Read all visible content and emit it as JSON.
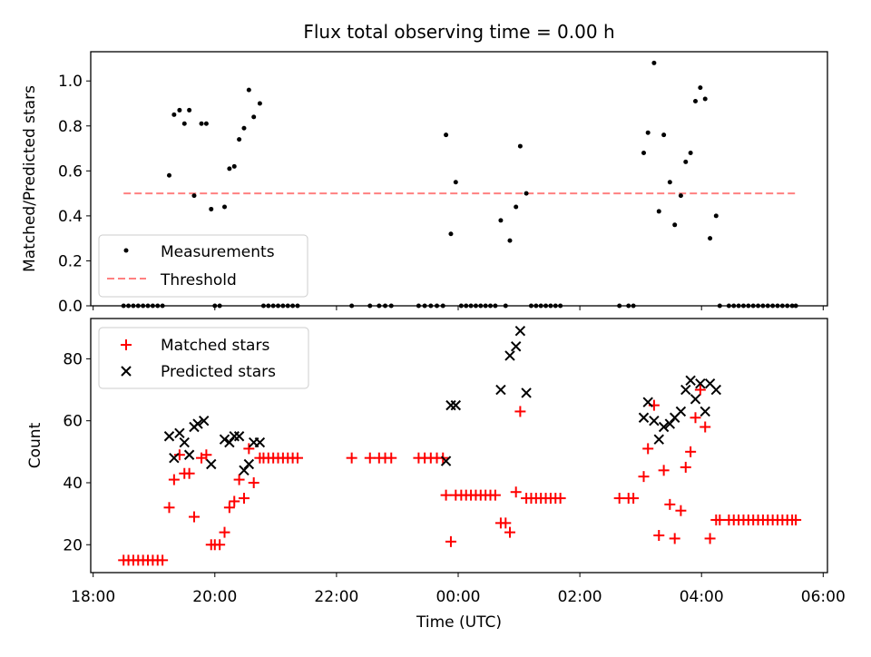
{
  "title": "Flux total observing time = 0.00 h",
  "chart_data": [
    {
      "type": "scatter",
      "panel": "top",
      "ylabel": "Matched/Predicted stars",
      "ylim": [
        0,
        1.13
      ],
      "yticks": [
        0.0,
        0.2,
        0.4,
        0.6,
        0.8,
        1.0
      ],
      "ytick_labels": [
        "0.0",
        "0.2",
        "0.4",
        "0.6",
        "0.8",
        "1.0"
      ],
      "xlim": [
        -0.04,
        12.07
      ],
      "xtick_hours": [
        0,
        2,
        4,
        6,
        8,
        10,
        12
      ],
      "legend_position": "bottom-left",
      "legend": [
        "Measurements",
        "Threshold"
      ],
      "threshold": {
        "name": "Threshold",
        "y": 0.5,
        "x": [
          0.5,
          11.55
        ],
        "color": "#ff8080"
      },
      "series": [
        {
          "name": "Measurements",
          "color": "#000000",
          "points": [
            [
              0.5,
              0
            ],
            [
              0.58,
              0
            ],
            [
              0.66,
              0
            ],
            [
              0.74,
              0
            ],
            [
              0.82,
              0
            ],
            [
              0.9,
              0
            ],
            [
              0.98,
              0
            ],
            [
              1.06,
              0
            ],
            [
              1.14,
              0
            ],
            [
              1.25,
              0.58
            ],
            [
              1.33,
              0.85
            ],
            [
              1.42,
              0.87
            ],
            [
              1.5,
              0.81
            ],
            [
              1.58,
              0.87
            ],
            [
              1.66,
              0.49
            ],
            [
              1.78,
              0.81
            ],
            [
              1.86,
              0.81
            ],
            [
              1.94,
              0.43
            ],
            [
              2.0,
              0
            ],
            [
              2.08,
              0
            ],
            [
              2.16,
              0.44
            ],
            [
              2.24,
              0.61
            ],
            [
              2.32,
              0.62
            ],
            [
              2.4,
              0.74
            ],
            [
              2.48,
              0.79
            ],
            [
              2.56,
              0.96
            ],
            [
              2.64,
              0.84
            ],
            [
              2.74,
              0.9
            ],
            [
              2.8,
              0
            ],
            [
              2.88,
              0
            ],
            [
              2.96,
              0
            ],
            [
              3.04,
              0
            ],
            [
              3.12,
              0
            ],
            [
              3.2,
              0
            ],
            [
              3.28,
              0
            ],
            [
              3.36,
              0
            ],
            [
              4.25,
              0
            ],
            [
              4.55,
              0
            ],
            [
              4.7,
              0
            ],
            [
              4.8,
              0
            ],
            [
              4.9,
              0
            ],
            [
              5.35,
              0
            ],
            [
              5.45,
              0
            ],
            [
              5.55,
              0
            ],
            [
              5.65,
              0
            ],
            [
              5.75,
              0
            ],
            [
              5.8,
              0.76
            ],
            [
              5.88,
              0.32
            ],
            [
              5.96,
              0.55
            ],
            [
              6.05,
              0
            ],
            [
              6.13,
              0
            ],
            [
              6.21,
              0
            ],
            [
              6.29,
              0
            ],
            [
              6.37,
              0
            ],
            [
              6.45,
              0
            ],
            [
              6.53,
              0
            ],
            [
              6.61,
              0
            ],
            [
              6.7,
              0.38
            ],
            [
              6.78,
              0
            ],
            [
              6.85,
              0.29
            ],
            [
              6.95,
              0.44
            ],
            [
              7.02,
              0.71
            ],
            [
              7.12,
              0.5
            ],
            [
              7.2,
              0
            ],
            [
              7.28,
              0
            ],
            [
              7.36,
              0
            ],
            [
              7.44,
              0
            ],
            [
              7.52,
              0
            ],
            [
              7.6,
              0
            ],
            [
              7.68,
              0
            ],
            [
              8.65,
              0
            ],
            [
              8.8,
              0
            ],
            [
              8.88,
              0
            ],
            [
              9.05,
              0.68
            ],
            [
              9.12,
              0.77
            ],
            [
              9.22,
              1.08
            ],
            [
              9.3,
              0.42
            ],
            [
              9.38,
              0.76
            ],
            [
              9.48,
              0.55
            ],
            [
              9.56,
              0.36
            ],
            [
              9.66,
              0.49
            ],
            [
              9.74,
              0.64
            ],
            [
              9.82,
              0.68
            ],
            [
              9.9,
              0.91
            ],
            [
              9.98,
              0.97
            ],
            [
              10.06,
              0.92
            ],
            [
              10.14,
              0.3
            ],
            [
              10.24,
              0.4
            ],
            [
              10.3,
              0
            ],
            [
              10.45,
              0
            ],
            [
              10.53,
              0
            ],
            [
              10.61,
              0
            ],
            [
              10.69,
              0
            ],
            [
              10.77,
              0
            ],
            [
              10.85,
              0
            ],
            [
              10.93,
              0
            ],
            [
              11.01,
              0
            ],
            [
              11.09,
              0
            ],
            [
              11.17,
              0
            ],
            [
              11.25,
              0
            ],
            [
              11.33,
              0
            ],
            [
              11.41,
              0
            ],
            [
              11.49,
              0
            ],
            [
              11.55,
              0
            ]
          ]
        }
      ]
    },
    {
      "type": "scatter",
      "panel": "bottom",
      "xlabel": "Time (UTC)",
      "ylabel": "Count",
      "ylim": [
        11,
        93
      ],
      "yticks": [
        20,
        40,
        60,
        80
      ],
      "ytick_labels": [
        "20",
        "40",
        "60",
        "80"
      ],
      "xlim": [
        -0.04,
        12.07
      ],
      "xtick_hours": [
        0,
        2,
        4,
        6,
        8,
        10,
        12
      ],
      "xtick_labels": [
        "18:00",
        "20:00",
        "22:00",
        "00:00",
        "02:00",
        "04:00",
        "06:00"
      ],
      "legend_position": "top-left",
      "legend": [
        "Matched stars",
        "Predicted stars"
      ],
      "series": [
        {
          "name": "Matched stars",
          "marker": "plus",
          "color": "#ff0000",
          "points": [
            [
              0.5,
              15
            ],
            [
              0.58,
              15
            ],
            [
              0.66,
              15
            ],
            [
              0.74,
              15
            ],
            [
              0.82,
              15
            ],
            [
              0.9,
              15
            ],
            [
              0.98,
              15
            ],
            [
              1.06,
              15
            ],
            [
              1.14,
              15
            ],
            [
              1.25,
              32
            ],
            [
              1.33,
              41
            ],
            [
              1.42,
              49
            ],
            [
              1.5,
              43
            ],
            [
              1.58,
              43
            ],
            [
              1.66,
              29
            ],
            [
              1.78,
              48
            ],
            [
              1.86,
              49
            ],
            [
              1.94,
              20
            ],
            [
              2.0,
              20
            ],
            [
              2.08,
              20
            ],
            [
              2.16,
              24
            ],
            [
              2.24,
              32
            ],
            [
              2.32,
              34
            ],
            [
              2.4,
              41
            ],
            [
              2.48,
              35
            ],
            [
              2.56,
              51
            ],
            [
              2.64,
              40
            ],
            [
              2.74,
              48
            ],
            [
              2.8,
              48
            ],
            [
              2.88,
              48
            ],
            [
              2.96,
              48
            ],
            [
              3.04,
              48
            ],
            [
              3.12,
              48
            ],
            [
              3.2,
              48
            ],
            [
              3.28,
              48
            ],
            [
              3.36,
              48
            ],
            [
              4.25,
              48
            ],
            [
              4.55,
              48
            ],
            [
              4.7,
              48
            ],
            [
              4.8,
              48
            ],
            [
              4.9,
              48
            ],
            [
              5.35,
              48
            ],
            [
              5.45,
              48
            ],
            [
              5.55,
              48
            ],
            [
              5.65,
              48
            ],
            [
              5.75,
              48
            ],
            [
              5.8,
              36
            ],
            [
              5.88,
              21
            ],
            [
              5.96,
              36
            ],
            [
              6.05,
              36
            ],
            [
              6.13,
              36
            ],
            [
              6.21,
              36
            ],
            [
              6.29,
              36
            ],
            [
              6.37,
              36
            ],
            [
              6.45,
              36
            ],
            [
              6.53,
              36
            ],
            [
              6.61,
              36
            ],
            [
              6.7,
              27
            ],
            [
              6.78,
              27
            ],
            [
              6.85,
              24
            ],
            [
              6.95,
              37
            ],
            [
              7.02,
              63
            ],
            [
              7.12,
              35
            ],
            [
              7.2,
              35
            ],
            [
              7.28,
              35
            ],
            [
              7.36,
              35
            ],
            [
              7.44,
              35
            ],
            [
              7.52,
              35
            ],
            [
              7.6,
              35
            ],
            [
              7.68,
              35
            ],
            [
              8.65,
              35
            ],
            [
              8.8,
              35
            ],
            [
              8.88,
              35
            ],
            [
              9.05,
              42
            ],
            [
              9.12,
              51
            ],
            [
              9.22,
              65
            ],
            [
              9.3,
              23
            ],
            [
              9.38,
              44
            ],
            [
              9.48,
              33
            ],
            [
              9.56,
              22
            ],
            [
              9.66,
              31
            ],
            [
              9.74,
              45
            ],
            [
              9.82,
              50
            ],
            [
              9.9,
              61
            ],
            [
              9.98,
              70
            ],
            [
              10.06,
              58
            ],
            [
              10.14,
              22
            ],
            [
              10.24,
              28
            ],
            [
              10.3,
              28
            ],
            [
              10.45,
              28
            ],
            [
              10.53,
              28
            ],
            [
              10.61,
              28
            ],
            [
              10.69,
              28
            ],
            [
              10.77,
              28
            ],
            [
              10.85,
              28
            ],
            [
              10.93,
              28
            ],
            [
              11.01,
              28
            ],
            [
              11.09,
              28
            ],
            [
              11.17,
              28
            ],
            [
              11.25,
              28
            ],
            [
              11.33,
              28
            ],
            [
              11.41,
              28
            ],
            [
              11.49,
              28
            ],
            [
              11.55,
              28
            ]
          ]
        },
        {
          "name": "Predicted stars",
          "marker": "x",
          "color": "#000000",
          "points": [
            [
              1.25,
              55
            ],
            [
              1.33,
              48
            ],
            [
              1.42,
              56
            ],
            [
              1.5,
              53
            ],
            [
              1.58,
              49
            ],
            [
              1.66,
              58
            ],
            [
              1.72,
              59
            ],
            [
              1.82,
              60
            ],
            [
              1.94,
              46
            ],
            [
              2.16,
              54
            ],
            [
              2.24,
              53
            ],
            [
              2.32,
              55
            ],
            [
              2.4,
              55
            ],
            [
              2.48,
              44
            ],
            [
              2.56,
              46
            ],
            [
              2.64,
              53
            ],
            [
              2.74,
              53
            ],
            [
              5.8,
              47
            ],
            [
              5.88,
              65
            ],
            [
              5.96,
              65
            ],
            [
              6.7,
              70
            ],
            [
              6.85,
              81
            ],
            [
              6.95,
              84
            ],
            [
              7.02,
              89
            ],
            [
              7.12,
              69
            ],
            [
              9.05,
              61
            ],
            [
              9.12,
              66
            ],
            [
              9.22,
              60
            ],
            [
              9.3,
              54
            ],
            [
              9.38,
              58
            ],
            [
              9.48,
              59
            ],
            [
              9.56,
              61
            ],
            [
              9.66,
              63
            ],
            [
              9.74,
              70
            ],
            [
              9.82,
              73
            ],
            [
              9.9,
              67
            ],
            [
              9.98,
              72
            ],
            [
              10.06,
              63
            ],
            [
              10.14,
              72
            ],
            [
              10.24,
              70
            ]
          ]
        }
      ]
    }
  ]
}
